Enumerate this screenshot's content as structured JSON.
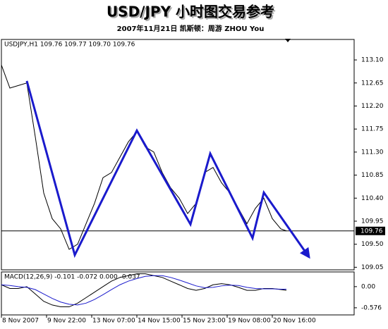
{
  "title": "USD/JPY 小时图交易参考",
  "subtitle": "2007年11月21日  凯斯顿：周游 ZHOU You",
  "chart_data": [
    {
      "type": "line",
      "header": "USDJPY,H1  109.76 109.77 109.70 109.76",
      "xlim": [
        0,
        125
      ],
      "xticks": [
        {
          "value": 0,
          "label": "8 Nov 2007"
        },
        {
          "value": 16,
          "label": "9 Nov 22:00"
        },
        {
          "value": 32,
          "label": "13 Nov 07:00"
        },
        {
          "value": 48,
          "label": "14 Nov 15:00"
        },
        {
          "value": 64,
          "label": "15 Nov 23:00"
        },
        {
          "value": 80,
          "label": "19 Nov 08:00"
        },
        {
          "value": 96,
          "label": "20 Nov 16:00"
        }
      ],
      "ylim": [
        109.0,
        113.5
      ],
      "yticks": [
        {
          "value": 109.05,
          "label": "109.05"
        },
        {
          "value": 109.5,
          "label": "109.50"
        },
        {
          "value": 109.95,
          "label": "109.95"
        },
        {
          "value": 110.4,
          "label": "110.40"
        },
        {
          "value": 110.85,
          "label": "110.85"
        },
        {
          "value": 111.3,
          "label": "111.30"
        },
        {
          "value": 111.75,
          "label": "111.75"
        },
        {
          "value": 112.2,
          "label": "112.20"
        },
        {
          "value": 112.65,
          "label": "112.65"
        },
        {
          "value": 113.1,
          "label": "113.10"
        }
      ],
      "current_price": {
        "value": 109.76,
        "label": "109.76"
      },
      "series": [
        {
          "color": "#000000",
          "x": [
            0,
            3,
            6,
            9,
            12,
            15,
            18,
            21,
            24,
            27,
            30,
            33,
            36,
            39,
            42,
            45,
            48,
            51,
            54,
            57,
            60,
            63,
            66,
            69,
            72,
            75,
            78,
            81,
            84,
            87,
            90,
            93,
            96,
            99,
            101
          ],
          "values": [
            113.0,
            112.55,
            112.6,
            112.65,
            111.6,
            110.5,
            110.0,
            109.8,
            109.4,
            109.5,
            109.9,
            110.3,
            110.8,
            110.9,
            111.2,
            111.5,
            111.7,
            111.4,
            111.3,
            110.9,
            110.6,
            110.4,
            110.1,
            110.3,
            110.9,
            111.0,
            110.7,
            110.5,
            110.2,
            109.9,
            110.2,
            110.4,
            110.0,
            109.8,
            109.76
          ]
        },
        {
          "color": "#1a1acc",
          "arrow": true,
          "x": [
            9,
            26,
            48,
            67,
            74,
            89,
            93,
            109
          ],
          "values": [
            112.69,
            109.29,
            111.72,
            109.89,
            111.27,
            109.62,
            110.51,
            109.25
          ]
        }
      ]
    },
    {
      "type": "line",
      "header": "MACD(12,26,9) -0.101 -0.072 0.000 -0.037",
      "xlim": [
        0,
        125
      ],
      "ylim": [
        -0.77,
        0.4
      ],
      "yticks": [
        {
          "value": 0,
          "label": "0.00"
        },
        -0.576
      ],
      "series": [
        {
          "color": "#000000",
          "x": [
            0,
            3,
            6,
            9,
            12,
            15,
            18,
            21,
            24,
            27,
            30,
            33,
            36,
            39,
            42,
            45,
            48,
            51,
            54,
            57,
            60,
            63,
            66,
            69,
            72,
            75,
            78,
            81,
            84,
            87,
            90,
            93,
            96,
            99,
            101
          ],
          "values": [
            0.05,
            -0.05,
            -0.05,
            0,
            -0.2,
            -0.4,
            -0.5,
            -0.55,
            -0.55,
            -0.45,
            -0.3,
            -0.15,
            0,
            0.15,
            0.25,
            0.3,
            0.35,
            0.35,
            0.3,
            0.25,
            0.15,
            0.05,
            -0.05,
            -0.1,
            -0.05,
            0.05,
            0.08,
            0.05,
            -0.02,
            -0.1,
            -0.1,
            -0.05,
            -0.05,
            -0.08,
            -0.1
          ]
        },
        {
          "color": "#1a1acc",
          "x": [
            0,
            3,
            6,
            9,
            12,
            15,
            18,
            21,
            24,
            27,
            30,
            33,
            36,
            39,
            42,
            45,
            48,
            51,
            54,
            57,
            60,
            63,
            66,
            69,
            72,
            75,
            78,
            81,
            84,
            87,
            90,
            93,
            96,
            99,
            101
          ],
          "values": [
            0.05,
            0.03,
            0,
            -0.02,
            -0.08,
            -0.2,
            -0.32,
            -0.42,
            -0.48,
            -0.5,
            -0.45,
            -0.35,
            -0.22,
            -0.08,
            0.05,
            0.15,
            0.22,
            0.28,
            0.3,
            0.3,
            0.25,
            0.18,
            0.1,
            0.02,
            -0.03,
            -0.02,
            0.02,
            0.04,
            0.03,
            -0.02,
            -0.05,
            -0.06,
            -0.06,
            -0.07,
            -0.07
          ]
        }
      ]
    }
  ]
}
